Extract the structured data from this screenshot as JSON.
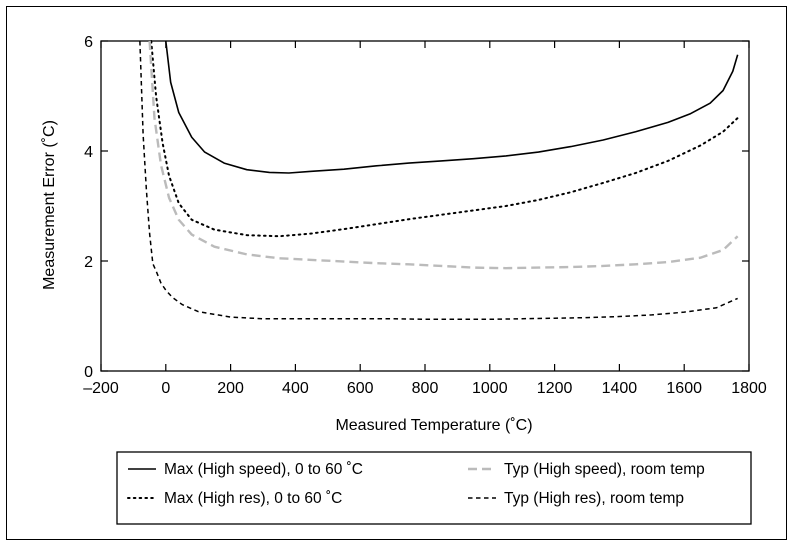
{
  "chart_data": {
    "type": "line",
    "title": "",
    "xlabel": "Measured Temperature (˚C)",
    "ylabel": "Measurement Error (˚C)",
    "xlim": [
      -200,
      1800
    ],
    "ylim": [
      0,
      6
    ],
    "x_ticks": [
      -200,
      0,
      200,
      400,
      600,
      800,
      1000,
      1200,
      1400,
      1600,
      1800
    ],
    "x_tick_labels": [
      "–200",
      "0",
      "200",
      "400",
      "600",
      "800",
      "1000",
      "1200",
      "1400",
      "1600",
      "1800"
    ],
    "y_ticks": [
      0,
      2,
      4,
      6
    ],
    "y_tick_labels": [
      "0",
      "2",
      "4",
      "6"
    ],
    "grid": false,
    "legend_position": "bottom",
    "series": [
      {
        "name": "Max (High speed), 0 to 60 ˚C",
        "style": "solid",
        "color": "#000000",
        "x": [
          0,
          15,
          40,
          80,
          120,
          180,
          250,
          320,
          380,
          450,
          550,
          650,
          750,
          850,
          950,
          1050,
          1150,
          1250,
          1350,
          1450,
          1550,
          1620,
          1680,
          1720,
          1750,
          1765
        ],
        "y": [
          6.0,
          5.25,
          4.7,
          4.25,
          3.98,
          3.78,
          3.66,
          3.61,
          3.6,
          3.63,
          3.67,
          3.73,
          3.78,
          3.82,
          3.86,
          3.91,
          3.98,
          4.08,
          4.2,
          4.35,
          4.52,
          4.68,
          4.87,
          5.1,
          5.45,
          5.75
        ]
      },
      {
        "name": "Max (High res), 0 to 60 ˚C",
        "style": "dotted",
        "color": "#000000",
        "x": [
          -45,
          -30,
          -10,
          10,
          40,
          80,
          150,
          250,
          350,
          450,
          550,
          650,
          750,
          850,
          950,
          1050,
          1150,
          1250,
          1350,
          1450,
          1550,
          1650,
          1720,
          1765
        ],
        "y": [
          6.0,
          5.0,
          4.15,
          3.55,
          3.05,
          2.75,
          2.57,
          2.47,
          2.45,
          2.5,
          2.58,
          2.67,
          2.76,
          2.84,
          2.92,
          3.0,
          3.11,
          3.25,
          3.42,
          3.6,
          3.82,
          4.1,
          4.35,
          4.6
        ]
      },
      {
        "name": "Typ (High speed), room temp",
        "style": "dashed",
        "color": "#bbbbbb",
        "x": [
          -50,
          -35,
          -15,
          10,
          40,
          80,
          150,
          250,
          350,
          450,
          550,
          650,
          750,
          850,
          950,
          1050,
          1150,
          1250,
          1350,
          1450,
          1550,
          1650,
          1720,
          1765
        ],
        "y": [
          6.0,
          4.6,
          3.75,
          3.15,
          2.75,
          2.48,
          2.26,
          2.12,
          2.05,
          2.02,
          1.99,
          1.96,
          1.94,
          1.91,
          1.88,
          1.87,
          1.88,
          1.89,
          1.91,
          1.94,
          1.98,
          2.06,
          2.2,
          2.45
        ]
      },
      {
        "name": "Typ (High res), room temp",
        "style": "dashed",
        "color": "#000000",
        "x": [
          -80,
          -70,
          -60,
          -50,
          -40,
          -30,
          -15,
          0,
          20,
          50,
          100,
          200,
          300,
          400,
          500,
          600,
          700,
          800,
          900,
          1000,
          1100,
          1200,
          1300,
          1400,
          1500,
          1600,
          1700,
          1765
        ],
        "y": [
          6.0,
          4.3,
          3.3,
          2.5,
          1.95,
          1.82,
          1.6,
          1.47,
          1.34,
          1.21,
          1.08,
          0.98,
          0.95,
          0.95,
          0.95,
          0.95,
          0.95,
          0.94,
          0.94,
          0.94,
          0.95,
          0.96,
          0.97,
          0.99,
          1.02,
          1.07,
          1.15,
          1.32
        ]
      }
    ]
  }
}
